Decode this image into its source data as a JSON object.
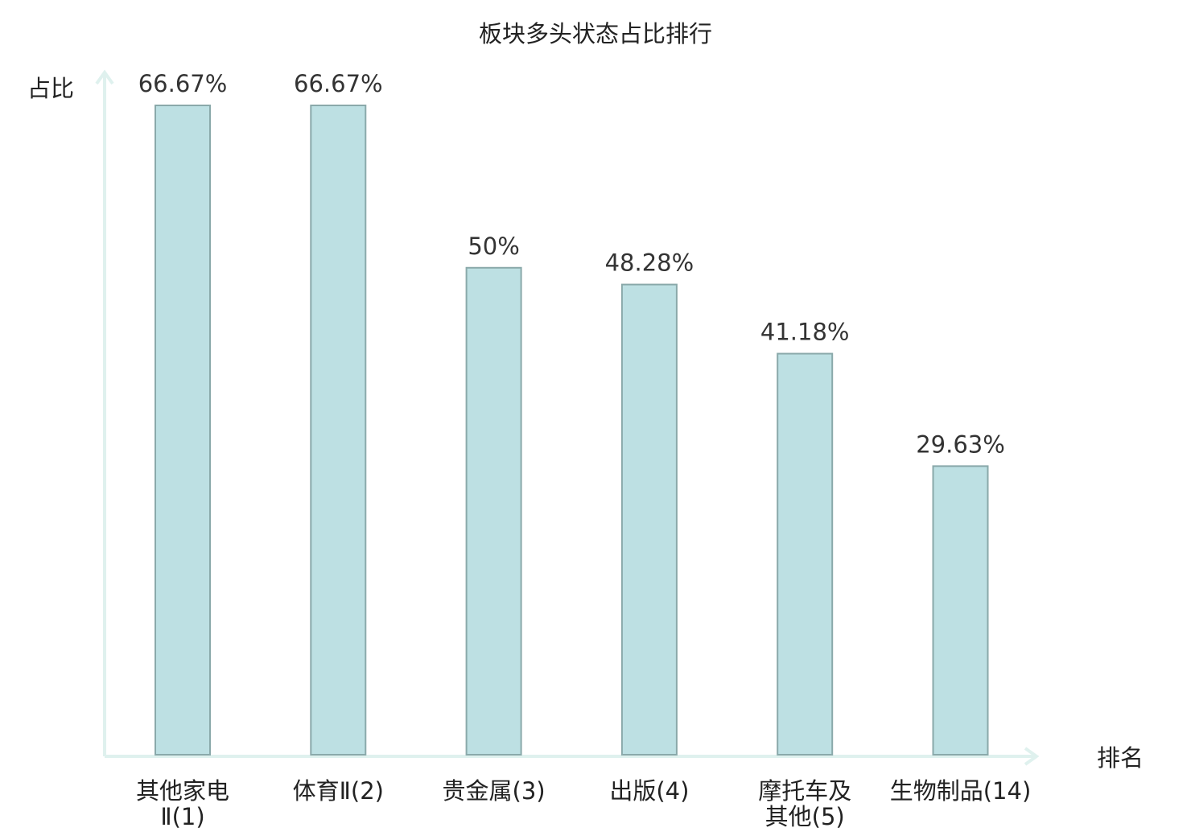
{
  "chart_data": {
    "type": "bar",
    "title": "板块多头状态占比排行",
    "xlabel": "排名",
    "ylabel": "占比",
    "ylim": [
      0,
      70
    ],
    "grid": false,
    "categories": [
      [
        "其他家电",
        "Ⅱ(1)"
      ],
      [
        "体育Ⅱ(2)"
      ],
      [
        "贵金属(3)"
      ],
      [
        "出版(4)"
      ],
      [
        "摩托车及",
        "其他(5)"
      ],
      [
        "生物制品(14)"
      ]
    ],
    "values": [
      66.67,
      66.67,
      50,
      48.28,
      41.18,
      29.63
    ],
    "value_labels": [
      "66.67%",
      "66.67%",
      "50%",
      "48.28%",
      "41.18%",
      "29.63%"
    ],
    "highlight_index": 5,
    "colors": {
      "bar_fill": "#bde0e3",
      "bar_stroke": "#8aa9aa",
      "axis": "#dff1ee",
      "highlight_text": "#e01010",
      "text": "#222222"
    }
  }
}
